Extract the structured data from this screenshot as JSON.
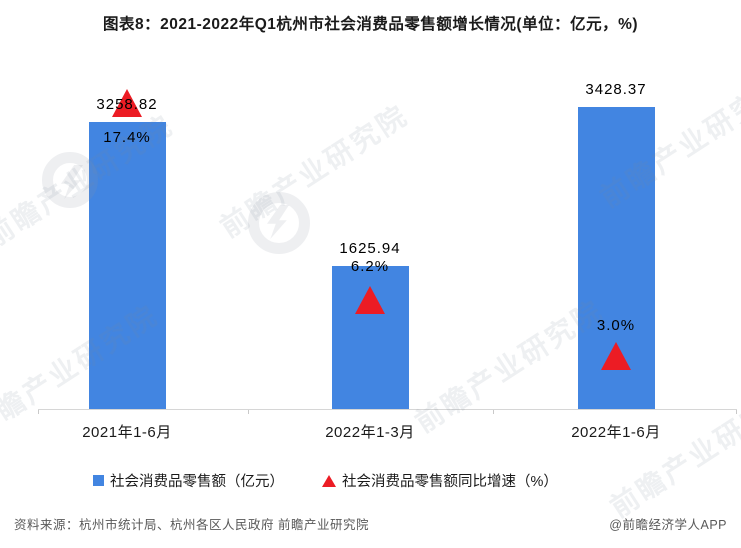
{
  "title": "图表8：2021-2022年Q1杭州市社会消费品零售额增长情况(单位：亿元，%)",
  "chart_data": {
    "type": "bar",
    "title": "图表8：2021-2022年Q1杭州市社会消费品零售额增长情况",
    "unit_note": "(单位：亿元，%)",
    "categories": [
      "2021年1-6月",
      "2022年1-3月",
      "2022年1-6月"
    ],
    "series": [
      {
        "name": "社会消费品零售额（亿元）",
        "type": "bar",
        "axis": "primary",
        "values": [
          3258.82,
          1625.94,
          3428.37
        ]
      },
      {
        "name": "社会消费品零售额同比增速（%）",
        "type": "triangle-marker",
        "axis": "secondary",
        "values": [
          17.4,
          6.2,
          3.0
        ]
      }
    ],
    "value_labels": [
      "3258.82",
      "1625.94",
      "3428.37"
    ],
    "rate_labels": [
      "17.4%",
      "6.2%",
      "3.0%"
    ],
    "primary_axis_range": [
      0,
      4000
    ],
    "secondary_axis_range": [
      0,
      20
    ],
    "grid": false,
    "legend_position": "bottom"
  },
  "legend": {
    "bar_label": "社会消费品零售额（亿元）",
    "rate_label": "社会消费品零售额同比增速（%）"
  },
  "footer": {
    "source": "资料来源：杭州市统计局、杭州各区人民政府 前瞻产业研究院",
    "brand": "@前瞻经济学人APP"
  },
  "watermark": {
    "text": "前瞻产业研究院"
  },
  "colors": {
    "bar": "#4285E1",
    "marker": "#EC1C24",
    "axis_line": "#D6D6D6",
    "footer_text": "#595959"
  }
}
